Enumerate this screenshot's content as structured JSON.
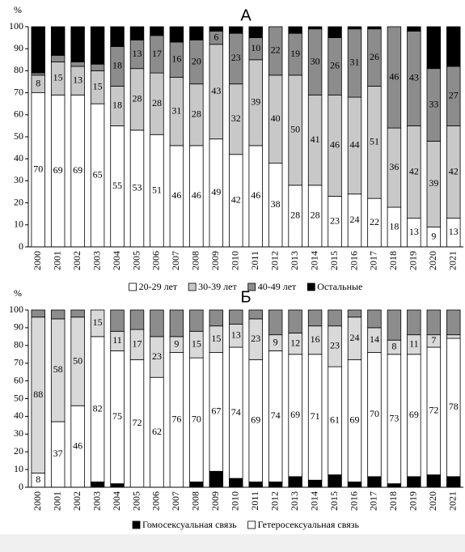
{
  "chart_data": [
    {
      "type": "bar",
      "stacked": true,
      "title": "А",
      "y_label": "%",
      "categories": [
        "2000",
        "2001",
        "2002",
        "2003",
        "2004",
        "2005",
        "2006",
        "2007",
        "2008",
        "2009",
        "2010",
        "2011",
        "2012",
        "2013",
        "2014",
        "2015",
        "2016",
        "2017",
        "2018",
        "2019",
        "2020",
        "2021"
      ],
      "ylim": [
        0,
        100
      ],
      "yticks": [
        0,
        10,
        20,
        30,
        40,
        50,
        60,
        70,
        80,
        90,
        100
      ],
      "series": [
        {
          "name": "20-29 лет",
          "color": "#ffffff",
          "values": [
            70,
            69,
            69,
            65,
            55,
            53,
            51,
            46,
            46,
            49,
            42,
            46,
            38,
            28,
            28,
            23,
            24,
            22,
            18,
            13,
            9,
            13
          ]
        },
        {
          "name": "30-39 лет",
          "color": "#c8c8c8",
          "values": [
            8,
            15,
            13,
            15,
            18,
            28,
            28,
            31,
            28,
            43,
            32,
            39,
            40,
            50,
            41,
            46,
            44,
            51,
            36,
            42,
            39,
            42
          ]
        },
        {
          "name": "40-49 лет",
          "color": "#8c8c8c",
          "values": [
            1,
            3,
            2,
            3,
            18,
            13,
            17,
            16,
            20,
            6,
            23,
            10,
            22,
            19,
            30,
            26,
            31,
            26,
            46,
            43,
            33,
            27
          ],
          "value_labels": [
            null,
            null,
            null,
            null,
            "18",
            "13",
            "17",
            "16",
            "20",
            "6",
            "23",
            "10",
            "22",
            "19",
            "30",
            "26",
            "31",
            "26",
            "46",
            "43",
            "33",
            "27"
          ]
        },
        {
          "name": "Остальные",
          "color": "#000000",
          "values": [
            21,
            13,
            16,
            17,
            9,
            6,
            4,
            7,
            6,
            2,
            3,
            5,
            0,
            3,
            1,
            5,
            1,
            1,
            0,
            2,
            19,
            18
          ],
          "value_labels": [
            null,
            null,
            null,
            null,
            null,
            null,
            null,
            null,
            null,
            null,
            null,
            null,
            null,
            null,
            null,
            null,
            null,
            null,
            null,
            null,
            null,
            null
          ]
        }
      ]
    },
    {
      "type": "bar",
      "stacked": true,
      "title": "Б",
      "y_label": "%",
      "categories": [
        "2000",
        "2001",
        "2002",
        "2003",
        "2004",
        "2005",
        "2006",
        "2007",
        "2008",
        "2009",
        "2010",
        "2011",
        "2012",
        "2013",
        "2014",
        "2015",
        "2016",
        "2017",
        "2018",
        "2019",
        "2020",
        "2021"
      ],
      "ylim": [
        0,
        100
      ],
      "yticks": [
        0,
        10,
        20,
        30,
        40,
        50,
        60,
        70,
        80,
        90,
        100
      ],
      "series": [
        {
          "name": "Гомосексуальная связь",
          "color": "#000000",
          "values": [
            0,
            0,
            0,
            3,
            2,
            0,
            0,
            0,
            3,
            9,
            5,
            3,
            3,
            6,
            4,
            7,
            3,
            6,
            2,
            6,
            7,
            6
          ],
          "value_labels": [
            null,
            null,
            null,
            null,
            null,
            null,
            null,
            null,
            null,
            null,
            null,
            null,
            null,
            null,
            null,
            null,
            null,
            null,
            null,
            null,
            null,
            null
          ]
        },
        {
          "name": "Гетеросексуальная связь",
          "color": "#ffffff",
          "values": [
            8,
            37,
            46,
            82,
            75,
            72,
            62,
            76,
            70,
            67,
            74,
            69,
            74,
            69,
            71,
            61,
            69,
            70,
            73,
            69,
            72,
            78
          ]
        },
        {
          "color": "#d9d9d9",
          "values": [
            88,
            58,
            50,
            15,
            11,
            17,
            23,
            9,
            15,
            15,
            13,
            23,
            9,
            12,
            16,
            23,
            24,
            14,
            8,
            11,
            7,
            2
          ],
          "value_labels": [
            "88",
            "58",
            "50",
            "15",
            "11",
            "17",
            "23",
            "9",
            "15",
            "15",
            "13",
            "23",
            "9",
            "12",
            "16",
            "23",
            "24",
            "14",
            "8",
            "11",
            "7",
            null
          ]
        },
        {
          "color": "#8c8c8c",
          "values": [
            4,
            5,
            4,
            0,
            12,
            11,
            15,
            15,
            12,
            9,
            8,
            5,
            14,
            13,
            9,
            9,
            4,
            10,
            17,
            14,
            14,
            14
          ],
          "value_labels": [
            null,
            null,
            null,
            null,
            null,
            null,
            null,
            null,
            null,
            null,
            null,
            null,
            null,
            null,
            null,
            null,
            null,
            null,
            null,
            null,
            null,
            null
          ]
        }
      ]
    }
  ]
}
